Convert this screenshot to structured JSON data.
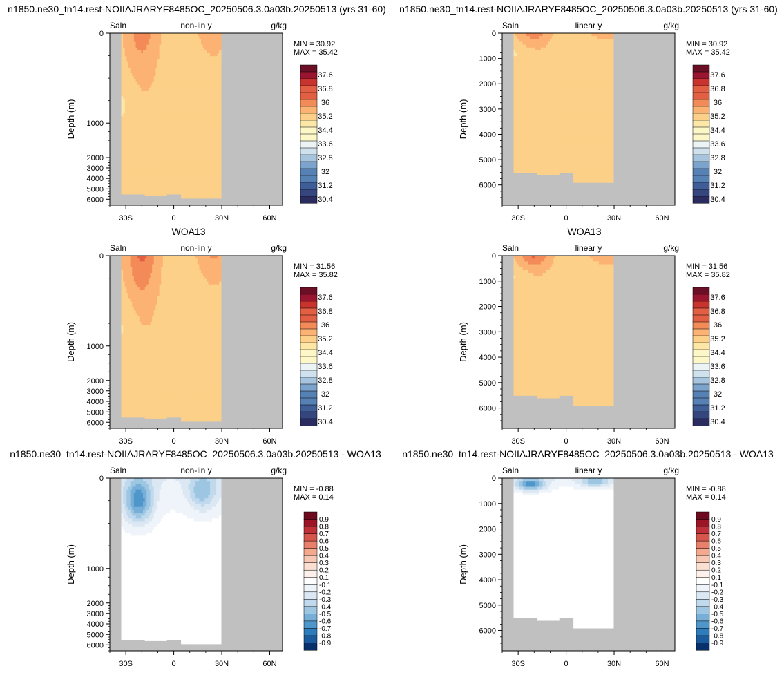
{
  "row_titles": [
    {
      "left": "n1850.ne30_tn14.rest-NOIIAJRARYF8485OC_20250506.3.0a03b.20250513 (yrs 31-60)",
      "right": "n1850.ne30_tn14.rest-NOIIAJRARYF8485OC_20250506.3.0a03b.20250513 (yrs 31-60)"
    },
    {
      "left": "WOA13",
      "right": "WOA13"
    },
    {
      "left": "n1850.ne30_tn14.rest-NOIIAJRARYF8485OC_20250506.3.0a03b.20250513 - WOA13",
      "right": "n1850.ne30_tn14.rest-NOIIAJRARYF8485OC_20250506.3.0a03b.20250513 - WOA13"
    }
  ],
  "colors": {
    "land": "#c0c0c0",
    "abs_palette": [
      "#2a2b5e",
      "#35467f",
      "#3f5e98",
      "#5581b5",
      "#7ba3cb",
      "#a6c4de",
      "#cfe1ec",
      "#ebf3f5",
      "#fdf7c8",
      "#fde7a6",
      "#fdd089",
      "#fbb272",
      "#f38b58",
      "#e35f43",
      "#c8332e",
      "#9a1530",
      "#6a0f25"
    ],
    "diff_palette": [
      "#08306b",
      "#1c5a9e",
      "#2f7cbc",
      "#4f97cb",
      "#77afd8",
      "#9dc6e2",
      "#c1d9ec",
      "#dbe8f3",
      "#eef4f9",
      "#ffffff",
      "#fdf0ea",
      "#fbe0d2",
      "#f9c8b5",
      "#f4a98f",
      "#e9806c",
      "#d6564c",
      "#bf3039",
      "#9e1427",
      "#6e0a1e"
    ]
  },
  "chart_data": [
    {
      "type": "heatmap",
      "var_label": "Saln",
      "scale_label": "non-lin y",
      "units": "g/kg",
      "ylabel": "Depth (m)",
      "yticks": [
        "0",
        "1000",
        "2000",
        "3000",
        "4000",
        "5000",
        "6000"
      ],
      "xticks": [
        "30S",
        "0",
        "30N",
        "60N"
      ],
      "min_text": "MIN =  30.92",
      "max_text": "MAX =  35.42",
      "legend_labels": [
        "37.6",
        "36.8",
        "36",
        "35.2",
        "34.4",
        "33.6",
        "32.8",
        "32",
        "31.2",
        "30.4"
      ],
      "field": "model",
      "scale": "nonlin",
      "min": 30.92,
      "max": 35.42
    },
    {
      "type": "heatmap",
      "var_label": "Saln",
      "scale_label": "linear y",
      "units": "g/kg",
      "ylabel": "Depth (m)",
      "yticks": [
        "0",
        "1000",
        "2000",
        "3000",
        "4000",
        "5000",
        "6000"
      ],
      "xticks": [
        "30S",
        "0",
        "30N",
        "60N"
      ],
      "min_text": "MIN =  30.92",
      "max_text": "MAX =  35.42",
      "legend_labels": [
        "37.6",
        "36.8",
        "36",
        "35.2",
        "34.4",
        "33.6",
        "32.8",
        "32",
        "31.2",
        "30.4"
      ],
      "field": "model",
      "scale": "linear",
      "min": 30.92,
      "max": 35.42
    },
    {
      "type": "heatmap",
      "var_label": "Saln",
      "scale_label": "non-lin y",
      "units": "g/kg",
      "ylabel": "Depth (m)",
      "yticks": [
        "0",
        "1000",
        "2000",
        "3000",
        "4000",
        "5000",
        "6000"
      ],
      "xticks": [
        "30S",
        "0",
        "30N",
        "60N"
      ],
      "min_text": "MIN =  31.56",
      "max_text": "MAX =  35.82",
      "legend_labels": [
        "37.6",
        "36.8",
        "36",
        "35.2",
        "34.4",
        "33.6",
        "32.8",
        "32",
        "31.2",
        "30.4"
      ],
      "field": "obs",
      "scale": "nonlin",
      "min": 31.56,
      "max": 35.82
    },
    {
      "type": "heatmap",
      "var_label": "Saln",
      "scale_label": "linear y",
      "units": "g/kg",
      "ylabel": "Depth (m)",
      "yticks": [
        "0",
        "1000",
        "2000",
        "3000",
        "4000",
        "5000",
        "6000"
      ],
      "xticks": [
        "30S",
        "0",
        "30N",
        "60N"
      ],
      "min_text": "MIN =  31.56",
      "max_text": "MAX =  35.82",
      "legend_labels": [
        "37.6",
        "36.8",
        "36",
        "35.2",
        "34.4",
        "33.6",
        "32.8",
        "32",
        "31.2",
        "30.4"
      ],
      "field": "obs",
      "scale": "linear",
      "min": 31.56,
      "max": 35.82
    },
    {
      "type": "heatmap",
      "var_label": "Saln",
      "scale_label": "non-lin y",
      "units": "g/kg",
      "ylabel": "Depth (m)",
      "yticks": [
        "0",
        "1000",
        "2000",
        "3000",
        "4000",
        "5000",
        "6000"
      ],
      "xticks": [
        "30S",
        "0",
        "30N",
        "60N"
      ],
      "min_text": "MIN =  -0.88",
      "max_text": "MAX =  0.14",
      "legend_labels": [
        "0.9",
        "0.8",
        "0.7",
        "0.6",
        "0.5",
        "0.4",
        "0.3",
        "0.2",
        "0.1",
        "-0.1",
        "-0.2",
        "-0.3",
        "-0.4",
        "-0.5",
        "-0.6",
        "-0.7",
        "-0.8",
        "-0.9"
      ],
      "field": "diff",
      "scale": "nonlin",
      "min": -0.88,
      "max": 0.14
    },
    {
      "type": "heatmap",
      "var_label": "Saln",
      "scale_label": "linear y",
      "units": "g/kg",
      "ylabel": "Depth (m)",
      "yticks": [
        "0",
        "1000",
        "2000",
        "3000",
        "4000",
        "5000",
        "6000"
      ],
      "xticks": [
        "30S",
        "0",
        "30N",
        "60N"
      ],
      "min_text": "MIN =  -0.88",
      "max_text": "MAX =  0.14",
      "legend_labels": [
        "0.9",
        "0.8",
        "0.7",
        "0.6",
        "0.5",
        "0.4",
        "0.3",
        "0.2",
        "0.1",
        "-0.1",
        "-0.2",
        "-0.3",
        "-0.4",
        "-0.5",
        "-0.6",
        "-0.7",
        "-0.8",
        "-0.9"
      ],
      "field": "diff",
      "scale": "linear",
      "min": -0.88,
      "max": 0.14
    }
  ]
}
